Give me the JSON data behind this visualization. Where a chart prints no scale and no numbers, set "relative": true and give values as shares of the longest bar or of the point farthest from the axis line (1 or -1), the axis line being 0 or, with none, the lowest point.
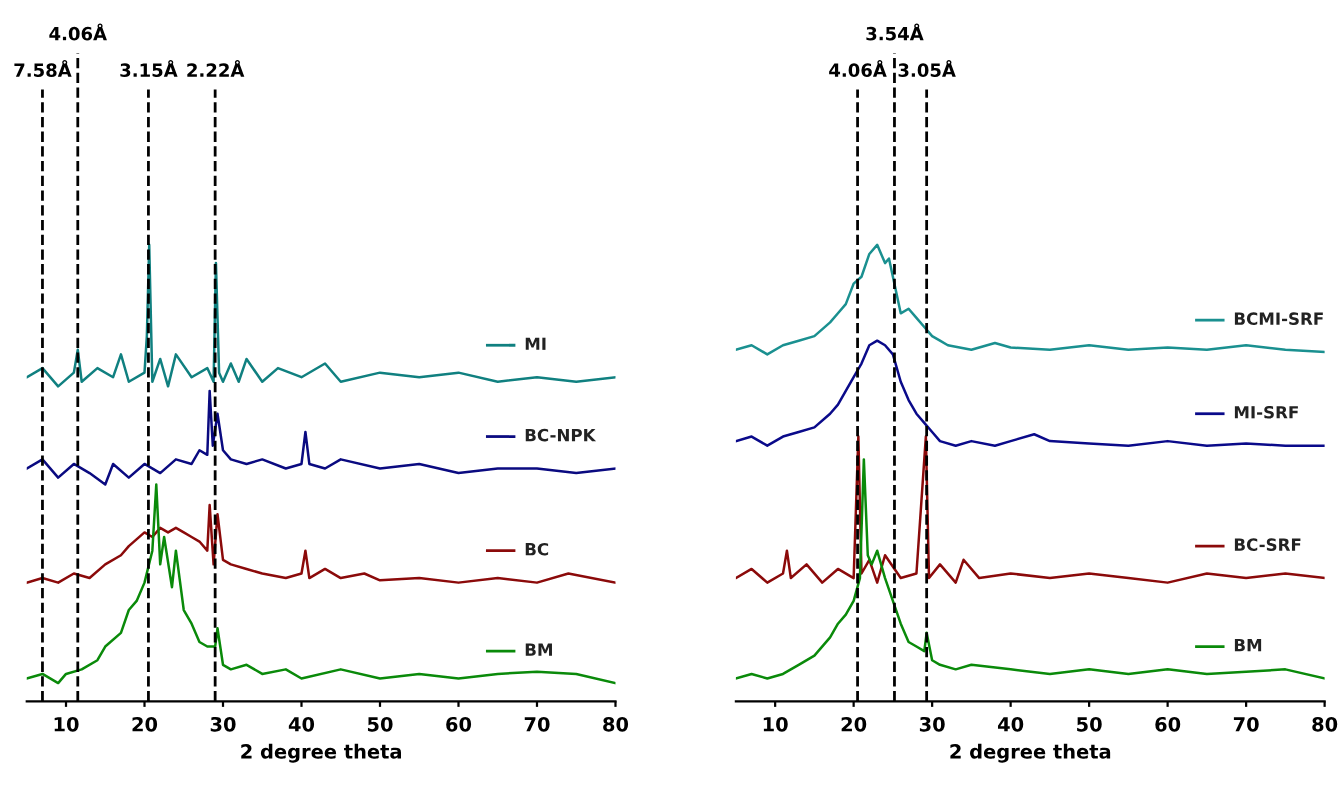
{
  "chart_data": [
    {
      "type": "line",
      "relative": true,
      "xlabel": "2 degree theta",
      "xlim": [
        5,
        80
      ],
      "xticks": [
        10,
        20,
        30,
        40,
        50,
        60,
        70,
        80
      ],
      "grid": false,
      "legend": "right",
      "marker": "none",
      "line_style": "solid",
      "ref_lines": [
        {
          "axis": "x",
          "value": 7,
          "label": "7.58Å",
          "line_style": "dashed",
          "color": "#000000"
        },
        {
          "axis": "x",
          "value": 11.5,
          "label": "4.06Å",
          "line_style": "dashed",
          "color": "#000000"
        },
        {
          "axis": "x",
          "value": 20.5,
          "label": "3.15Å",
          "line_style": "dashed",
          "color": "#000000"
        },
        {
          "axis": "x",
          "value": 29,
          "label": "2.22Å",
          "line_style": "dashed",
          "color": "#000000"
        }
      ],
      "series": [
        {
          "name": "MI",
          "color": "#108080",
          "x": [
            5,
            7,
            9,
            11,
            11.5,
            12,
            14,
            16,
            17,
            18,
            20,
            20.3,
            20.6,
            21,
            22,
            23,
            24,
            26,
            28,
            28.8,
            29.1,
            29.5,
            30,
            31,
            32,
            33,
            35,
            37,
            40,
            43,
            45,
            50,
            55,
            60,
            65,
            70,
            75,
            80
          ],
          "values": [
            0.71,
            0.73,
            0.69,
            0.72,
            0.77,
            0.7,
            0.73,
            0.71,
            0.76,
            0.7,
            0.72,
            0.8,
            1.0,
            0.7,
            0.75,
            0.69,
            0.76,
            0.71,
            0.73,
            0.7,
            0.96,
            0.72,
            0.7,
            0.74,
            0.7,
            0.75,
            0.7,
            0.73,
            0.71,
            0.74,
            0.7,
            0.72,
            0.71,
            0.72,
            0.7,
            0.71,
            0.7,
            0.71
          ]
        },
        {
          "name": "BC-NPK",
          "color": "#0a0a80",
          "x": [
            5,
            7,
            9,
            11,
            13,
            15,
            16,
            18,
            20,
            22,
            24,
            26,
            27,
            28,
            28.3,
            28.7,
            29.3,
            30,
            31,
            33,
            35,
            38,
            40,
            40.5,
            41,
            43,
            45,
            50,
            55,
            60,
            65,
            70,
            75,
            80
          ],
          "values": [
            0.51,
            0.53,
            0.49,
            0.52,
            0.5,
            0.475,
            0.52,
            0.49,
            0.52,
            0.5,
            0.53,
            0.52,
            0.55,
            0.54,
            0.68,
            0.56,
            0.63,
            0.55,
            0.53,
            0.52,
            0.53,
            0.51,
            0.52,
            0.59,
            0.52,
            0.51,
            0.53,
            0.51,
            0.52,
            0.5,
            0.51,
            0.51,
            0.5,
            0.51
          ]
        },
        {
          "name": "BC",
          "color": "#8b0a0a",
          "x": [
            5,
            7,
            9,
            11,
            13,
            15,
            17,
            18,
            20,
            21,
            22,
            23,
            24,
            25,
            26,
            27,
            28,
            28.3,
            28.8,
            29.3,
            30,
            31,
            33,
            35,
            38,
            40,
            40.5,
            41,
            43,
            45,
            48,
            50,
            55,
            60,
            65,
            70,
            74,
            80
          ],
          "values": [
            0.26,
            0.27,
            0.26,
            0.28,
            0.27,
            0.3,
            0.32,
            0.34,
            0.37,
            0.36,
            0.38,
            0.37,
            0.38,
            0.37,
            0.36,
            0.35,
            0.33,
            0.43,
            0.3,
            0.41,
            0.31,
            0.3,
            0.29,
            0.28,
            0.27,
            0.28,
            0.33,
            0.27,
            0.29,
            0.27,
            0.28,
            0.265,
            0.27,
            0.26,
            0.27,
            0.26,
            0.28,
            0.26
          ]
        },
        {
          "name": "BM",
          "color": "#0a8a0a",
          "x": [
            5,
            7,
            9,
            10,
            12,
            14,
            15,
            17,
            18,
            19,
            20,
            21,
            21.5,
            22,
            22.5,
            23.5,
            24,
            25,
            26,
            27,
            28,
            29,
            29.3,
            30,
            31,
            33,
            35,
            38,
            40,
            45,
            50,
            55,
            60,
            65,
            70,
            75,
            80
          ],
          "values": [
            0.05,
            0.06,
            0.04,
            0.06,
            0.07,
            0.09,
            0.12,
            0.15,
            0.2,
            0.22,
            0.26,
            0.33,
            0.475,
            0.3,
            0.36,
            0.25,
            0.33,
            0.2,
            0.17,
            0.13,
            0.12,
            0.12,
            0.16,
            0.08,
            0.07,
            0.08,
            0.06,
            0.07,
            0.05,
            0.07,
            0.05,
            0.06,
            0.05,
            0.06,
            0.065,
            0.06,
            0.04
          ]
        }
      ]
    },
    {
      "type": "line",
      "relative": true,
      "xlabel": "2 degree theta",
      "xlim": [
        5,
        80
      ],
      "xticks": [
        10,
        20,
        30,
        40,
        50,
        60,
        70,
        80
      ],
      "grid": false,
      "legend": "right",
      "marker": "none",
      "line_style": "solid",
      "ref_lines": [
        {
          "axis": "x",
          "value": 20.5,
          "label": "4.06Å",
          "line_style": "dashed",
          "color": "#000000"
        },
        {
          "axis": "x",
          "value": 25.2,
          "label": "3.54Å",
          "line_style": "dashed",
          "color": "#000000"
        },
        {
          "axis": "x",
          "value": 29.3,
          "label": "3.05Å",
          "line_style": "dashed",
          "color": "#000000"
        }
      ],
      "series": [
        {
          "name": "BCMI-SRF",
          "color": "#1a9090",
          "x": [
            5,
            7,
            9,
            11,
            13,
            15,
            17,
            18,
            19,
            20,
            21,
            22,
            23,
            24,
            24.5,
            25,
            26,
            27,
            28,
            29,
            30,
            31,
            32,
            35,
            38,
            40,
            45,
            50,
            55,
            60,
            65,
            70,
            75,
            80
          ],
          "values": [
            0.77,
            0.78,
            0.76,
            0.78,
            0.79,
            0.8,
            0.83,
            0.85,
            0.87,
            0.915,
            0.93,
            0.98,
            1.0,
            0.96,
            0.97,
            0.93,
            0.85,
            0.86,
            0.84,
            0.82,
            0.8,
            0.79,
            0.78,
            0.77,
            0.785,
            0.775,
            0.77,
            0.78,
            0.77,
            0.775,
            0.77,
            0.78,
            0.77,
            0.765
          ]
        },
        {
          "name": "MI-SRF",
          "color": "#0a0a8a",
          "x": [
            5,
            7,
            9,
            11,
            13,
            15,
            17,
            18,
            19,
            20,
            21,
            22,
            23,
            24,
            25,
            26,
            27,
            28,
            29,
            30,
            31,
            33,
            35,
            38,
            40,
            43,
            45,
            50,
            55,
            60,
            65,
            70,
            75,
            80
          ],
          "values": [
            0.57,
            0.58,
            0.56,
            0.58,
            0.59,
            0.6,
            0.63,
            0.65,
            0.68,
            0.71,
            0.74,
            0.78,
            0.79,
            0.78,
            0.76,
            0.7,
            0.66,
            0.63,
            0.61,
            0.59,
            0.57,
            0.56,
            0.57,
            0.56,
            0.57,
            0.585,
            0.57,
            0.565,
            0.56,
            0.57,
            0.56,
            0.565,
            0.56,
            0.56
          ]
        },
        {
          "name": "BC-SRF",
          "color": "#8b0a0a",
          "x": [
            5,
            7,
            9,
            11,
            11.5,
            12,
            14,
            16,
            18,
            20,
            20.6,
            21,
            22,
            23,
            24,
            26,
            28,
            29.2,
            29.6,
            31,
            33,
            34,
            36,
            40,
            45,
            50,
            55,
            60,
            65,
            70,
            75,
            80
          ],
          "values": [
            0.27,
            0.29,
            0.26,
            0.28,
            0.33,
            0.27,
            0.3,
            0.26,
            0.29,
            0.27,
            0.58,
            0.28,
            0.31,
            0.26,
            0.32,
            0.27,
            0.28,
            0.58,
            0.27,
            0.3,
            0.26,
            0.31,
            0.27,
            0.28,
            0.27,
            0.28,
            0.27,
            0.26,
            0.28,
            0.27,
            0.28,
            0.27
          ]
        },
        {
          "name": "BM",
          "color": "#0a8a0a",
          "x": [
            5,
            7,
            9,
            11,
            13,
            15,
            17,
            18,
            19,
            20,
            20.8,
            21.3,
            21.8,
            22.3,
            23,
            24,
            25,
            26,
            27,
            28,
            29,
            29.3,
            30,
            31,
            33,
            35,
            40,
            45,
            50,
            55,
            60,
            65,
            70,
            75,
            80
          ],
          "values": [
            0.05,
            0.06,
            0.05,
            0.06,
            0.08,
            0.1,
            0.14,
            0.17,
            0.19,
            0.22,
            0.27,
            0.53,
            0.32,
            0.3,
            0.33,
            0.27,
            0.22,
            0.17,
            0.13,
            0.12,
            0.11,
            0.15,
            0.09,
            0.08,
            0.07,
            0.08,
            0.07,
            0.06,
            0.07,
            0.06,
            0.07,
            0.06,
            0.065,
            0.07,
            0.05
          ]
        }
      ]
    }
  ]
}
